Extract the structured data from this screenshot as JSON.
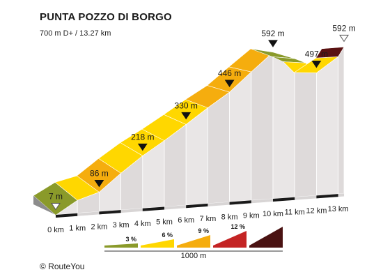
{
  "chart_data": {
    "type": "area",
    "title": "PUNTA POZZO DI BORGO",
    "subtitle": "700 m D+ / 13.27 km",
    "x_unit": "km",
    "y_unit": "m",
    "xlim": [
      0,
      13.27
    ],
    "ylim": [
      0,
      700
    ],
    "points": [
      {
        "x": 0,
        "y": 7
      },
      {
        "x": 1,
        "y": 60
      },
      {
        "x": 2,
        "y": 86
      },
      {
        "x": 3,
        "y": 155
      },
      {
        "x": 4,
        "y": 218
      },
      {
        "x": 5,
        "y": 272
      },
      {
        "x": 6,
        "y": 330
      },
      {
        "x": 7,
        "y": 390
      },
      {
        "x": 8,
        "y": 446
      },
      {
        "x": 9,
        "y": 520
      },
      {
        "x": 10,
        "y": 592
      },
      {
        "x": 11,
        "y": 560
      },
      {
        "x": 11.5,
        "y": 540
      },
      {
        "x": 12,
        "y": 497
      },
      {
        "x": 13,
        "y": 555
      },
      {
        "x": 13.27,
        "y": 592
      }
    ],
    "segments": [
      {
        "from": 0,
        "to": 1,
        "color": "#8a9a2a"
      },
      {
        "from": 1,
        "to": 2,
        "color": "#ffd700"
      },
      {
        "from": 2,
        "to": 3,
        "color": "#f5ad0e"
      },
      {
        "from": 3,
        "to": 4,
        "color": "#ffd700"
      },
      {
        "from": 4,
        "to": 5,
        "color": "#ffd700"
      },
      {
        "from": 5,
        "to": 6,
        "color": "#ffd700"
      },
      {
        "from": 6,
        "to": 7,
        "color": "#ffd700"
      },
      {
        "from": 7,
        "to": 8,
        "color": "#f5ad0e"
      },
      {
        "from": 8,
        "to": 9,
        "color": "#f5ad0e"
      },
      {
        "from": 9,
        "to": 10,
        "color": "#f5ad0e"
      },
      {
        "from": 10,
        "to": 11,
        "color": "#8a9a2a"
      },
      {
        "from": 11,
        "to": 11.5,
        "color": "#8a9a2a"
      },
      {
        "from": 11.5,
        "to": 12,
        "color": "#ffd700"
      },
      {
        "from": 12,
        "to": 13,
        "color": "#ffd700"
      },
      {
        "from": 13,
        "to": 13.27,
        "color": "#5a1212"
      }
    ],
    "x_ticks": [
      "0 km",
      "1 km",
      "2 km",
      "3 km",
      "4 km",
      "5 km",
      "6 km",
      "7 km",
      "8 km",
      "9 km",
      "10 km",
      "11 km",
      "12 km",
      "13 km"
    ],
    "markers": [
      {
        "x": 0,
        "y": 7,
        "label": "7 m",
        "shape": "open-triangle"
      },
      {
        "x": 2,
        "y": 86,
        "label": "86 m",
        "shape": "filled-triangle"
      },
      {
        "x": 4,
        "y": 218,
        "label": "218 m",
        "shape": "filled-triangle"
      },
      {
        "x": 6,
        "y": 330,
        "label": "330 m",
        "shape": "filled-triangle"
      },
      {
        "x": 8,
        "y": 446,
        "label": "446 m",
        "shape": "filled-triangle"
      },
      {
        "x": 10,
        "y": 592,
        "label": "592 m",
        "shape": "filled-triangle"
      },
      {
        "x": 12,
        "y": 497,
        "label": "497 m",
        "shape": "filled-triangle"
      },
      {
        "x": 13.27,
        "y": 592,
        "label": "592 m",
        "shape": "open-triangle"
      }
    ],
    "legend": {
      "items": [
        {
          "label": "3 %",
          "color": "#8a9a2a"
        },
        {
          "label": "6 %",
          "color": "#ffd700"
        },
        {
          "label": "9 %",
          "color": "#f5ad0e"
        },
        {
          "label": "12 %",
          "color": "#c42424"
        },
        {
          "label": "",
          "color": "#4a1212"
        }
      ],
      "scale_label": "1000 m"
    }
  },
  "footer": {
    "copyright": "©",
    "brand": "RouteYou"
  }
}
